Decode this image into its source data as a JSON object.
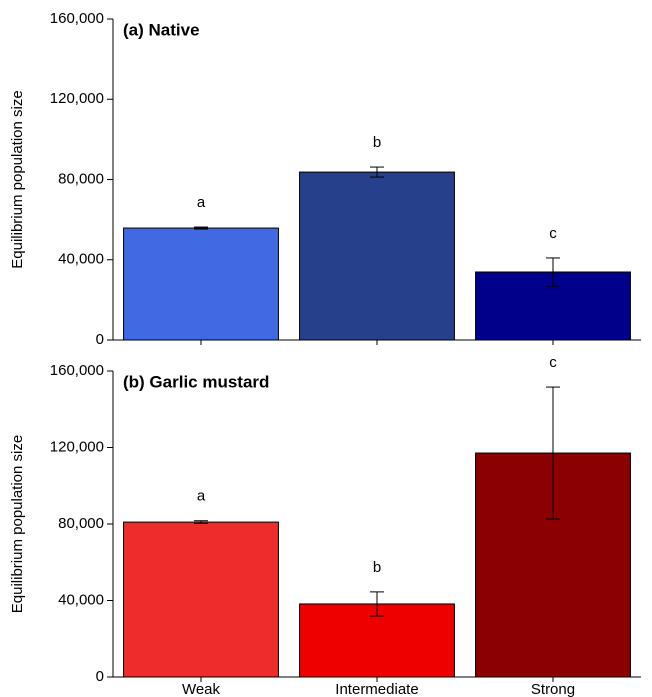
{
  "chart_data": [
    {
      "type": "bar",
      "title": "(a) Native",
      "ylabel": "Equilibrium population size",
      "categories": [
        null,
        null,
        null
      ],
      "values": [
        55800,
        83700,
        33900
      ],
      "errors": [
        500,
        2500,
        7000
      ],
      "annotations": [
        "a",
        "b",
        "c"
      ],
      "colors": [
        "#4169e1",
        "#27408b",
        "#00008b"
      ],
      "ylim": [
        0,
        160000
      ],
      "yticks": [
        0,
        {
          "value": 40000,
          "label": "40,000"
        },
        {
          "value": 80000,
          "label": "80,000"
        },
        {
          "value": 120000,
          "label": "120,000"
        },
        {
          "value": 160000,
          "label": "160,000"
        }
      ]
    },
    {
      "type": "bar",
      "title": "(b) Garlic mustard",
      "ylabel": "Equilibrium population size",
      "categories": [
        "Weak",
        "Intermediate",
        "Strong"
      ],
      "values": [
        81000,
        38200,
        117100
      ],
      "errors": [
        700,
        6300,
        34500
      ],
      "annotations": [
        "a",
        "b",
        "c"
      ],
      "colors": [
        "#ee2c2c",
        "#ee0000",
        "#8b0000"
      ],
      "ylim": [
        0,
        160000
      ],
      "yticks": [
        0,
        {
          "value": 40000,
          "label": "40,000"
        },
        {
          "value": 80000,
          "label": "80,000"
        },
        {
          "value": 120000,
          "label": "120,000"
        },
        {
          "value": 160000,
          "label": "160,000"
        }
      ]
    }
  ]
}
